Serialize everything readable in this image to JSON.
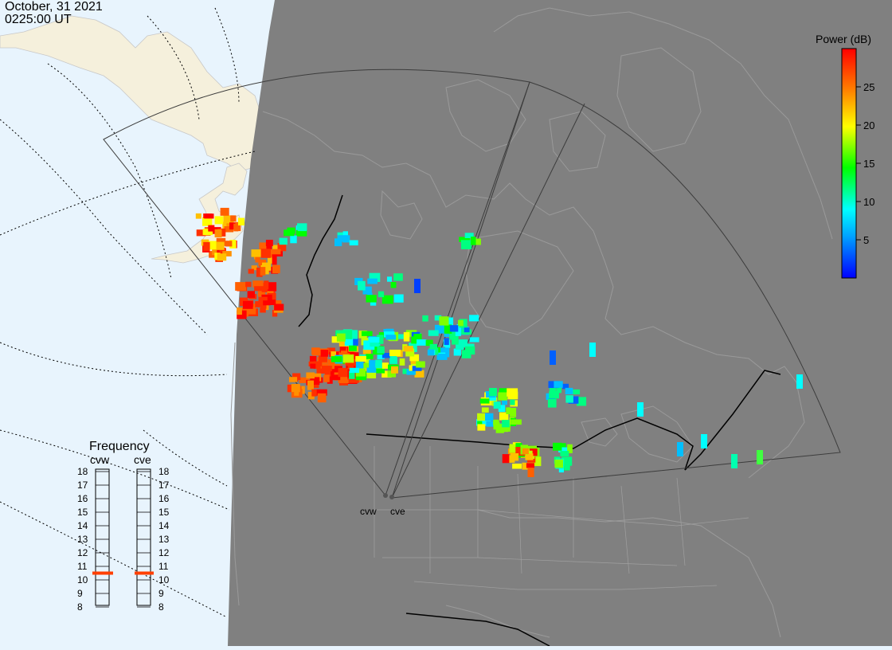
{
  "header": {
    "date": "October, 31 2021",
    "time": "0225:00 UT"
  },
  "radars": {
    "west_label": "cvw",
    "east_label": "cve"
  },
  "colorbar": {
    "title": "Power (dB)",
    "ticks": [
      "25",
      "20",
      "15",
      "10",
      "5"
    ],
    "tick_values": [
      25,
      20,
      15,
      10,
      5
    ],
    "range": [
      0,
      30
    ],
    "colors": [
      "#0000ff",
      "#00c0ff",
      "#00ffff",
      "#00ff00",
      "#ffff00",
      "#ff8000",
      "#ff0000"
    ]
  },
  "frequency": {
    "title": "Frequency",
    "col_west": "cvw",
    "col_east": "cve",
    "scale": [
      "18",
      "17",
      "16",
      "15",
      "14",
      "13",
      "12",
      "11",
      "10",
      "9",
      "8"
    ],
    "cvw_mhz": 10.5,
    "cve_mhz": 10.5,
    "marker_color": "#ff4000"
  },
  "map": {
    "night_color": "#808080",
    "day_ocean_color": "#e8f4fd",
    "land_day_color": "#f5f0dc",
    "coast_color": "#9a9a9a",
    "border_color": "#000000"
  }
}
